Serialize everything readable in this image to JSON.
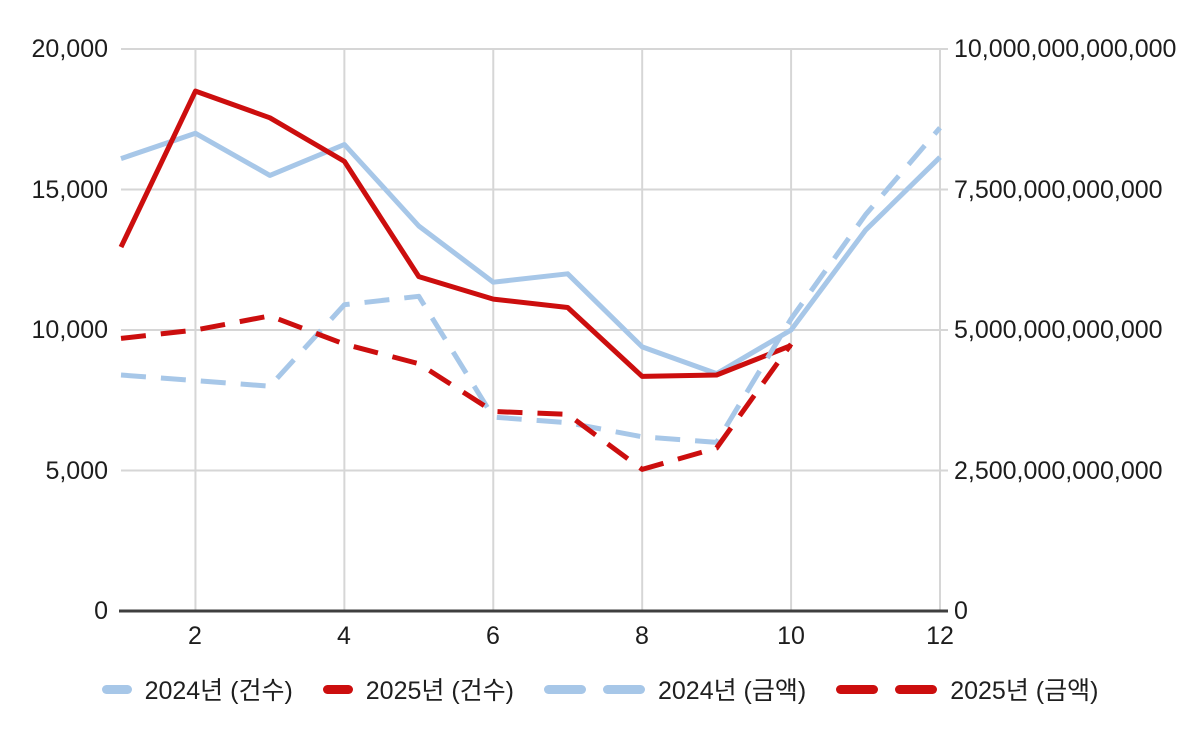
{
  "colors": {
    "series_2024": "#a7c7e8",
    "series_2025": "#cc0e0e",
    "grid": "#d6d6d6",
    "axis_line": "#3f3f3f",
    "text": "#1d1d1d"
  },
  "chart_data": {
    "type": "line",
    "x": [
      1,
      2,
      3,
      4,
      5,
      6,
      7,
      8,
      9,
      10,
      11,
      12
    ],
    "x_axis": {
      "ticks": [
        2,
        4,
        6,
        8,
        10,
        12
      ],
      "labels": [
        "2",
        "4",
        "6",
        "8",
        "10",
        "12"
      ]
    },
    "left_axis": {
      "max": 20000,
      "ticks": [
        0,
        5000,
        10000,
        15000,
        20000
      ],
      "labels": [
        "0",
        "5,000",
        "10,000",
        "15,000",
        "20,000"
      ]
    },
    "right_axis": {
      "max": 10000000000000,
      "ticks": [
        0,
        2500000000000,
        5000000000000,
        7500000000000,
        10000000000000
      ],
      "labels": [
        "0",
        "2,500,000,000,000",
        "5,000,000,000,000",
        "7,500,000,000,000",
        "10,000,000,000,000"
      ]
    },
    "grid": true,
    "legend_position": "bottom",
    "series": [
      {
        "name": "2024년 (건수)",
        "axis": "left",
        "style": "solid",
        "color": "#a7c7e8",
        "values": [
          16100,
          17000,
          15500,
          16600,
          13700,
          11700,
          12000,
          9400,
          8450,
          10000,
          13550,
          16150
        ]
      },
      {
        "name": "2025년 (건수)",
        "axis": "left",
        "style": "solid",
        "color": "#cc0e0e",
        "values": [
          12950,
          18500,
          17550,
          16000,
          11900,
          11100,
          10800,
          8350,
          8400,
          9450,
          null,
          null
        ]
      },
      {
        "name": "2024년 (금액)",
        "axis": "right",
        "style": "dashed",
        "color": "#a7c7e8",
        "values": [
          4200000000000,
          4100000000000,
          4000000000000,
          5450000000000,
          5600000000000,
          3450000000000,
          3350000000000,
          3100000000000,
          3000000000000,
          5200000000000,
          7050000000000,
          8600000000000
        ]
      },
      {
        "name": "2025년 (금액)",
        "axis": "right",
        "style": "dashed",
        "color": "#cc0e0e",
        "values": [
          4850000000000,
          5000000000000,
          5250000000000,
          4750000000000,
          4400000000000,
          3550000000000,
          3500000000000,
          2520000000000,
          2900000000000,
          4750000000000,
          null,
          null
        ]
      }
    ]
  }
}
